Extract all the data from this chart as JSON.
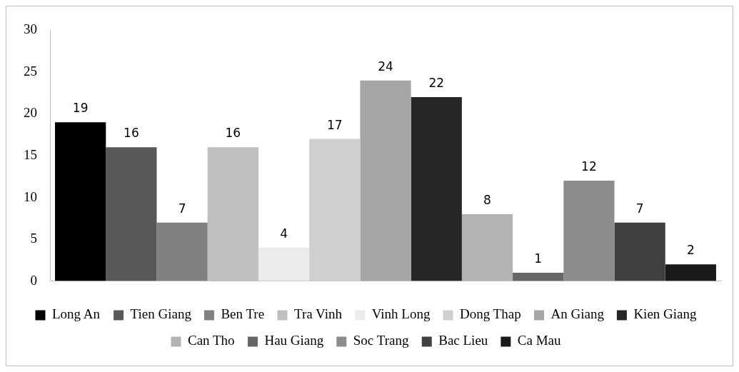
{
  "chart_data": {
    "type": "bar",
    "categories": [
      null
    ],
    "ylim": [
      0,
      30
    ],
    "yticks": [
      0,
      5,
      10,
      15,
      20,
      25,
      30
    ],
    "grid": false,
    "legend": "bottom",
    "data_labels": true,
    "series": [
      {
        "name": "Long An",
        "color": "#000000",
        "values": [
          19
        ]
      },
      {
        "name": "Tien Giang",
        "color": "#595959",
        "values": [
          16
        ]
      },
      {
        "name": "Ben Tre",
        "color": "#808080",
        "values": [
          7
        ]
      },
      {
        "name": "Tra Vinh",
        "color": "#bfbfbf",
        "values": [
          16
        ]
      },
      {
        "name": "Vinh Long",
        "color": "#ececec",
        "values": [
          4
        ]
      },
      {
        "name": "Dong Thap",
        "color": "#cfcfcf",
        "values": [
          17
        ]
      },
      {
        "name": "An Giang",
        "color": "#a6a6a6",
        "values": [
          24
        ]
      },
      {
        "name": "Kien Giang",
        "color": "#262626",
        "values": [
          22
        ]
      },
      {
        "name": "Can Tho",
        "color": "#b3b3b3",
        "values": [
          8
        ]
      },
      {
        "name": "Hau Giang",
        "color": "#666666",
        "values": [
          1
        ]
      },
      {
        "name": "Soc Trang",
        "color": "#8c8c8c",
        "values": [
          12
        ]
      },
      {
        "name": "Bac Lieu",
        "color": "#404040",
        "values": [
          7
        ]
      },
      {
        "name": "Ca Mau",
        "color": "#1a1a1a",
        "values": [
          2
        ]
      }
    ]
  }
}
